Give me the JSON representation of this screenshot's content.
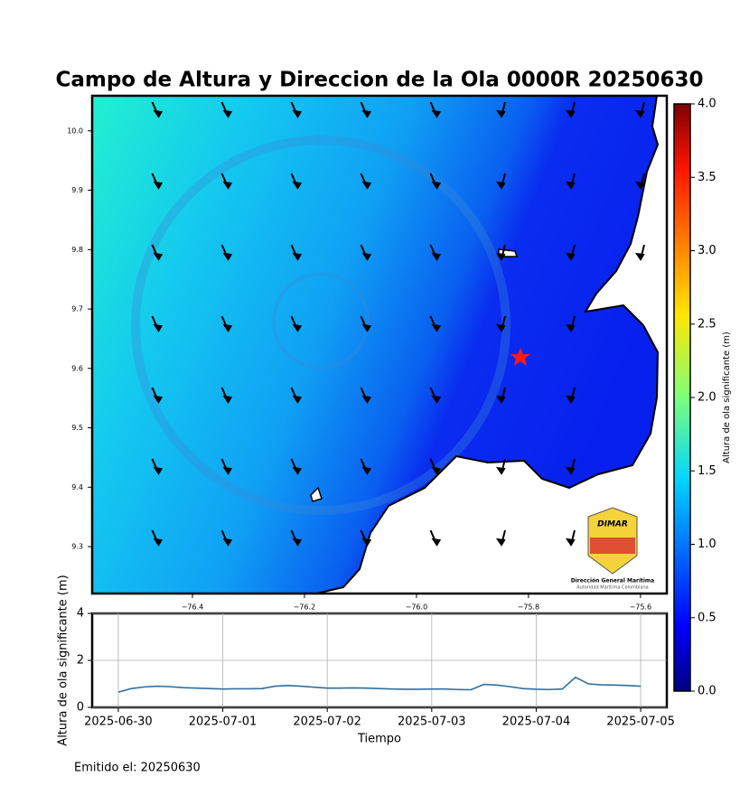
{
  "title": "Campo de Altura y Direccion de la Ola 0000R 20250630",
  "map": {
    "xlim": [
      -76.579,
      -75.553
    ],
    "ylim": [
      9.221,
      10.059
    ],
    "xticks": [
      {
        "value": -76.4,
        "label": "−76.4"
      },
      {
        "value": -76.2,
        "label": "−76.2"
      },
      {
        "value": -76.0,
        "label": "−76.0"
      },
      {
        "value": -75.8,
        "label": "−75.8"
      },
      {
        "value": -75.6,
        "label": "−75.6"
      }
    ],
    "yticks": [
      9.3,
      9.4,
      9.5,
      9.6,
      9.7,
      9.8,
      9.9,
      {
        "value": 10,
        "label": "10.0"
      }
    ]
  },
  "colorbar": {
    "label": "Altura de ola significante (m)",
    "lim": [
      0,
      4
    ],
    "ticks": [
      {
        "value": 0,
        "label": "0.0"
      },
      0.5,
      {
        "value": 1,
        "label": "1.0"
      },
      1.5,
      {
        "value": 2,
        "label": "2.0"
      },
      2.5,
      {
        "value": 3,
        "label": "3.0"
      },
      3.5,
      {
        "value": 4,
        "label": "4.0"
      }
    ]
  },
  "logo": {
    "name": "DIMAR",
    "line1": "Dirección General Marítima",
    "line2": "Autoridad Marítima Colombiana"
  },
  "chart_data": {
    "type": "line",
    "ylabel": "Altura de ola significante (m)",
    "xlabel": "Tiempo",
    "color": "#2f6f9f",
    "grid": true,
    "x": [
      "2025-06-30 00:00",
      "2025-06-30 03:00",
      "2025-06-30 06:00",
      "2025-06-30 09:00",
      "2025-06-30 12:00",
      "2025-06-30 15:00",
      "2025-06-30 18:00",
      "2025-06-30 21:00",
      "2025-07-01 00:00",
      "2025-07-01 03:00",
      "2025-07-01 06:00",
      "2025-07-01 09:00",
      "2025-07-01 12:00",
      "2025-07-01 15:00",
      "2025-07-01 18:00",
      "2025-07-01 21:00",
      "2025-07-02 00:00",
      "2025-07-02 03:00",
      "2025-07-02 06:00",
      "2025-07-02 09:00",
      "2025-07-02 12:00",
      "2025-07-02 15:00",
      "2025-07-02 18:00",
      "2025-07-02 21:00",
      "2025-07-03 00:00",
      "2025-07-03 03:00",
      "2025-07-03 06:00",
      "2025-07-03 09:00",
      "2025-07-03 12:00",
      "2025-07-03 15:00",
      "2025-07-03 18:00",
      "2025-07-03 21:00",
      "2025-07-04 00:00",
      "2025-07-04 03:00",
      "2025-07-04 06:00",
      "2025-07-04 09:00",
      "2025-07-04 12:00",
      "2025-07-04 15:00",
      "2025-07-04 18:00",
      "2025-07-04 21:00",
      "2025-07-05 00:00"
    ],
    "values": [
      0.65,
      0.8,
      0.87,
      0.9,
      0.88,
      0.84,
      0.82,
      0.8,
      0.78,
      0.79,
      0.79,
      0.8,
      0.9,
      0.93,
      0.9,
      0.86,
      0.82,
      0.82,
      0.83,
      0.82,
      0.8,
      0.78,
      0.77,
      0.77,
      0.78,
      0.78,
      0.76,
      0.75,
      0.98,
      0.95,
      0.88,
      0.8,
      0.77,
      0.76,
      0.78,
      1.28,
      1.0,
      0.96,
      0.95,
      0.93,
      0.9
    ],
    "ylim": [
      0,
      4
    ],
    "yticks": [
      0,
      2,
      4
    ],
    "xlim": [
      "2025-06-29 18:00",
      "2025-07-05 06:00"
    ],
    "xticks": [
      {
        "value": "2025-06-30 00:00",
        "label": "2025-06-30"
      },
      {
        "value": "2025-07-01 00:00",
        "label": "2025-07-01"
      },
      {
        "value": "2025-07-02 00:00",
        "label": "2025-07-02"
      },
      {
        "value": "2025-07-03 00:00",
        "label": "2025-07-03"
      },
      {
        "value": "2025-07-04 00:00",
        "label": "2025-07-04"
      },
      {
        "value": "2025-07-05 00:00",
        "label": "2025-07-05"
      }
    ]
  },
  "footer": "Emitido el: 20250630"
}
